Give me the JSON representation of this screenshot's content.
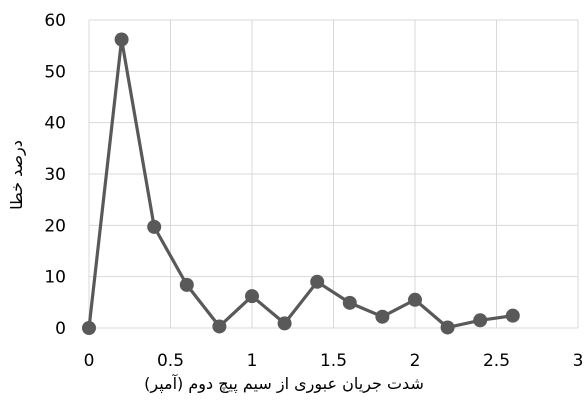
{
  "chart_data": {
    "type": "scatter",
    "xlabel": "شدت جریان عبوری از سیم پیچ دوم (آمپر)",
    "ylabel": "درصد خطا",
    "xlim": [
      0,
      3
    ],
    "ylim": [
      0,
      60
    ],
    "xticks": [
      "0",
      "0.5",
      "1",
      "1.5",
      "2",
      "2.5",
      "3"
    ],
    "yticks": [
      "0",
      "10",
      "20",
      "30",
      "40",
      "50",
      "60"
    ],
    "grid": true,
    "legend": "none",
    "series": [
      {
        "color": "#595959",
        "points": [
          {
            "x": 0.0,
            "y": 0.0
          },
          {
            "x": 0.2,
            "y": 56.2
          },
          {
            "x": 0.4,
            "y": 19.7
          },
          {
            "x": 0.6,
            "y": 8.4
          },
          {
            "x": 0.8,
            "y": 0.3
          },
          {
            "x": 1.0,
            "y": 6.2
          },
          {
            "x": 1.2,
            "y": 0.9
          },
          {
            "x": 1.4,
            "y": 9.0
          },
          {
            "x": 1.6,
            "y": 4.9
          },
          {
            "x": 1.8,
            "y": 2.2
          },
          {
            "x": 2.0,
            "y": 5.5
          },
          {
            "x": 2.2,
            "y": 0.1
          },
          {
            "x": 2.4,
            "y": 1.5
          },
          {
            "x": 2.6,
            "y": 2.4
          }
        ]
      }
    ]
  }
}
